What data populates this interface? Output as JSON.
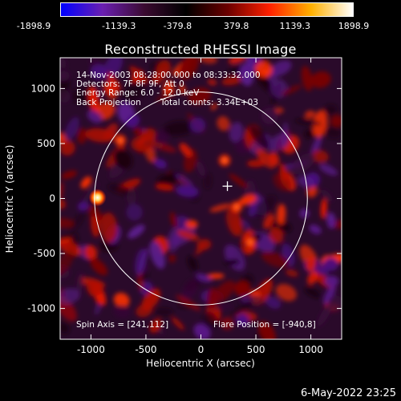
{
  "colorbar": {
    "ticks": [
      "-1898.9",
      "-1139.3",
      "-379.8",
      "379.8",
      "1139.3",
      "1898.9"
    ],
    "colors": [
      "#0000ff",
      "#6a1fb0",
      "#3a0a30",
      "#000000",
      "#6b0000",
      "#ff2000",
      "#ffb000",
      "#ffffff"
    ]
  },
  "title": "Reconstructed RHESSI Image",
  "info": {
    "line1": "14-Nov-2003 08:28:00.000 to 08:33:32.000",
    "line2": "Detectors: 7F 8F 9F, Att 0",
    "line3": "Energy Range: 6.0 - 12.0 keV",
    "line4a": "Back Projection",
    "line4b": "Total counts: 3.34E+03",
    "spin_axis": "Spin Axis = [241,112]",
    "flare_position": "Flare Position = [-940,8]"
  },
  "axes": {
    "xlabel": "Heliocentric X (arcsec)",
    "ylabel": "Heliocentric Y (arcsec)",
    "xticks": [
      -1000,
      -500,
      0,
      500,
      1000
    ],
    "yticks": [
      -1000,
      -500,
      0,
      500,
      1000
    ],
    "xlim": [
      -1280,
      1280
    ],
    "ylim": [
      -1280,
      1280
    ]
  },
  "markers": {
    "solar_disk_radius": 968,
    "spin_axis_center": [
      241,
      112
    ],
    "flare_position": [
      -940,
      8
    ]
  },
  "footer": {
    "date": "6-May-2022 23:25"
  }
}
